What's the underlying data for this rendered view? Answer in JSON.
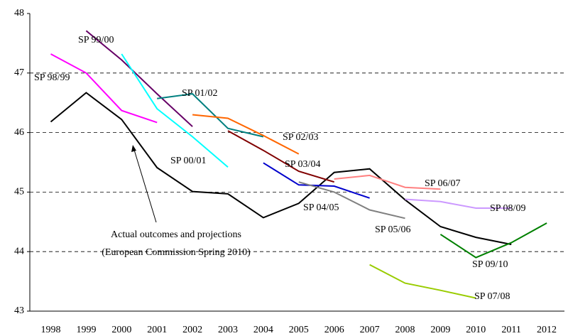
{
  "chart_data": {
    "type": "line",
    "categories": [
      "1998",
      "1999",
      "2000",
      "2001",
      "2002",
      "2003",
      "2004",
      "2005",
      "2006",
      "2007",
      "2008",
      "2009",
      "2010",
      "2011",
      "2012"
    ],
    "ylim": [
      43,
      48
    ],
    "yticks": [
      43,
      44,
      45,
      46,
      47,
      48
    ],
    "grid": true,
    "annotation": [
      "Actual outcomes and projections",
      "(European Commission Spring 2010)"
    ],
    "series": [
      {
        "color": "#000000",
        "values": [
          46.18,
          46.67,
          46.22,
          45.41,
          45.01,
          44.97,
          44.57,
          44.81,
          45.33,
          45.39,
          44.87,
          44.42,
          44.24,
          44.12,
          null
        ]
      },
      {
        "name": "SP 98/99",
        "color": "#ff00ff",
        "values": [
          47.32,
          47.0,
          46.37,
          46.17,
          null,
          null,
          null,
          null,
          null,
          null,
          null,
          null,
          null,
          null,
          null
        ]
      },
      {
        "name": "SP 99/00",
        "color": "#660066",
        "values": [
          null,
          47.71,
          47.22,
          46.65,
          46.1,
          null,
          null,
          null,
          null,
          null,
          null,
          null,
          null,
          null,
          null
        ]
      },
      {
        "name": "SP 00/01",
        "color": "#00ffff",
        "values": [
          null,
          null,
          47.32,
          46.4,
          45.93,
          45.42,
          null,
          null,
          null,
          null,
          null,
          null,
          null,
          null,
          null
        ]
      },
      {
        "name": "SP 01/02",
        "color": "#008080",
        "values": [
          null,
          null,
          null,
          46.57,
          46.65,
          46.07,
          45.93,
          null,
          null,
          null,
          null,
          null,
          null,
          null,
          null
        ]
      },
      {
        "name": "SP 02/03",
        "color": "#ff6600",
        "values": [
          null,
          null,
          null,
          null,
          46.3,
          46.24,
          45.95,
          45.64,
          null,
          null,
          null,
          null,
          null,
          null,
          null
        ]
      },
      {
        "name": "SP 03/04",
        "color": "#800000",
        "values": [
          null,
          null,
          null,
          null,
          null,
          46.03,
          45.7,
          45.35,
          45.17,
          null,
          null,
          null,
          null,
          null,
          null
        ]
      },
      {
        "name": "SP 04/05",
        "color": "#0000cc",
        "values": [
          null,
          null,
          null,
          null,
          null,
          null,
          45.49,
          45.12,
          45.1,
          44.9,
          null,
          null,
          null,
          null,
          null
        ]
      },
      {
        "name": "SP 05/06",
        "color": "#808080",
        "values": [
          null,
          null,
          null,
          null,
          null,
          null,
          null,
          45.17,
          45.0,
          44.7,
          44.56,
          null,
          null,
          null,
          null
        ]
      },
      {
        "name": "SP 06/07",
        "color": "#ff8080",
        "values": [
          null,
          null,
          null,
          null,
          null,
          null,
          null,
          null,
          45.22,
          45.28,
          45.08,
          45.05,
          null,
          null,
          null
        ]
      },
      {
        "name": "SP 07/08",
        "color": "#99cc00",
        "values": [
          null,
          null,
          null,
          null,
          null,
          null,
          null,
          null,
          null,
          43.78,
          43.47,
          43.35,
          43.22,
          null,
          null
        ]
      },
      {
        "name": "SP 08/09",
        "color": "#cc99ff",
        "values": [
          null,
          null,
          null,
          null,
          null,
          null,
          null,
          null,
          null,
          null,
          44.88,
          44.84,
          44.73,
          44.73,
          null
        ]
      },
      {
        "name": "SP 09/10",
        "color": "#008000",
        "values": [
          null,
          null,
          null,
          null,
          null,
          null,
          null,
          null,
          null,
          null,
          null,
          44.29,
          43.9,
          44.15,
          44.48
        ]
      }
    ]
  }
}
